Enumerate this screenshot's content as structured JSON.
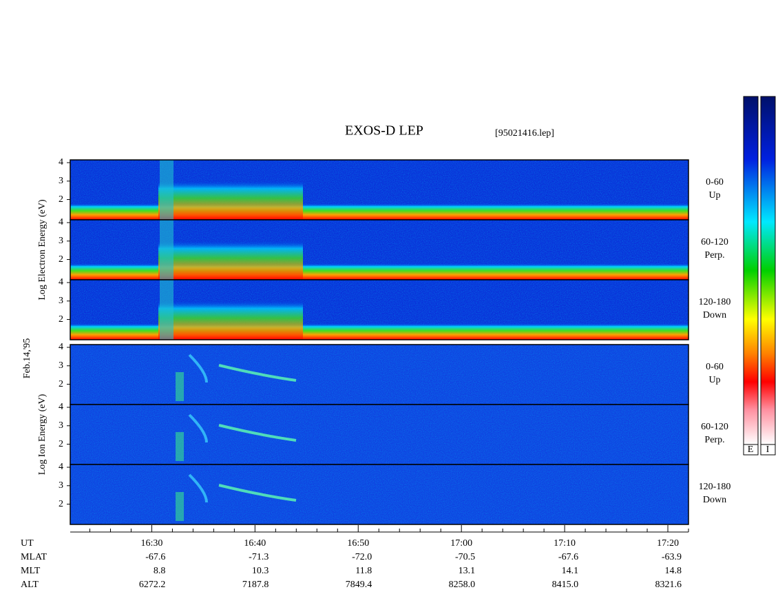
{
  "chart_data": {
    "type": "spectrogram",
    "title": "EXOS-D LEP",
    "file_label": "[95021416.lep]",
    "date_label": "Feb.14,'95",
    "groups": [
      {
        "ylabel": "Log Electron Energy (eV)",
        "panels": [
          {
            "angle": "0-60",
            "direction": "Up"
          },
          {
            "angle": "60-120",
            "direction": "Perp."
          },
          {
            "angle": "120-180",
            "direction": "Down"
          }
        ]
      },
      {
        "ylabel": "Log Ion Energy (eV)",
        "panels": [
          {
            "angle": "0-60",
            "direction": "Up"
          },
          {
            "angle": "60-120",
            "direction": "Perp."
          },
          {
            "angle": "120-180",
            "direction": "Down"
          }
        ]
      }
    ],
    "ylim": [
      0.9,
      4.15
    ],
    "yticks": [
      2,
      3,
      4
    ],
    "xlim": [
      982.1,
      1042
    ],
    "xticks": [
      {
        "value": 990,
        "label": "16:30"
      },
      {
        "value": 1000,
        "label": "16:40"
      },
      {
        "value": 1010,
        "label": "16:50"
      },
      {
        "value": 1020,
        "label": "17:00"
      },
      {
        "value": 1030,
        "label": "17:10"
      },
      {
        "value": 1040,
        "label": "17:20"
      }
    ],
    "minor_xticks": [
      984,
      986,
      988,
      992,
      994,
      996,
      998,
      1002,
      1004,
      1006,
      1008,
      1012,
      1014,
      1016,
      1018,
      1022,
      1024,
      1026,
      1028,
      1032,
      1034,
      1036,
      1038,
      1042
    ],
    "xlabel": "UT",
    "ephemeris": [
      {
        "label": "MLAT",
        "values": [
          "-67.6",
          "-71.3",
          "-72.0",
          "-70.5",
          "-67.6",
          "-63.9"
        ]
      },
      {
        "label": "MLT",
        "values": [
          "8.8",
          "10.3",
          "11.8",
          "13.1",
          "14.1",
          "14.8"
        ]
      },
      {
        "label": "ALT",
        "values": [
          "6272.2",
          "7187.8",
          "7849.4",
          "8258.0",
          "8415.0",
          "8321.6"
        ]
      }
    ],
    "colorbar_labels": [
      "E",
      "I"
    ]
  }
}
